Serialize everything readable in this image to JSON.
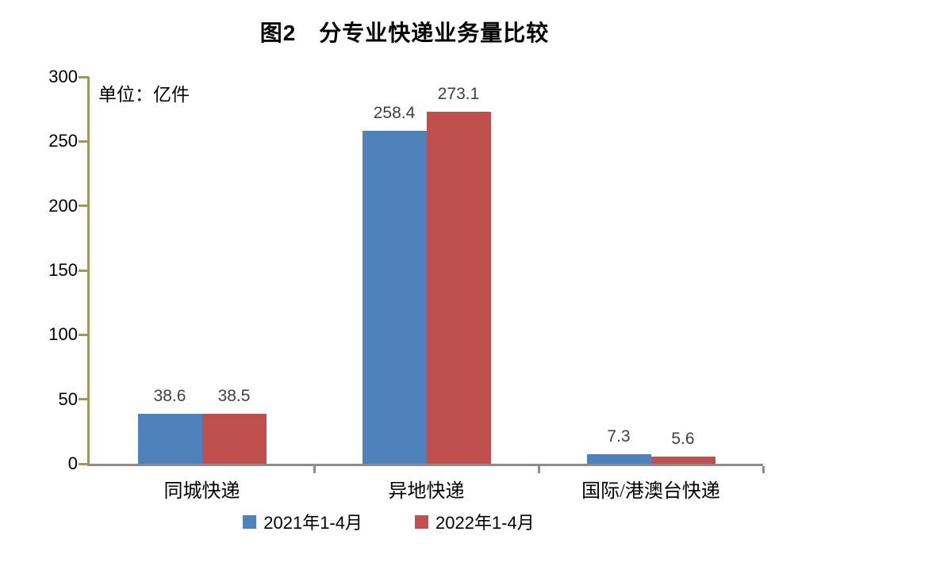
{
  "title": "图2　分专业快递业务量比较",
  "unit_label": "单位：亿件",
  "chart_data": {
    "type": "bar",
    "title": "图2　分专业快递业务量比较",
    "unit_label": "单位：亿件",
    "categories": [
      "同城快递",
      "异地快递",
      "国际/港澳台快递"
    ],
    "series": [
      {
        "name": "2021年1-4月",
        "color": "#4F81BD",
        "values": [
          38.6,
          258.4,
          7.3
        ]
      },
      {
        "name": "2022年1-4月",
        "color": "#C0504D",
        "values": [
          38.5,
          273.1,
          5.6
        ]
      }
    ],
    "xlabel": "",
    "ylabel": "单位：亿件",
    "ylim": [
      0,
      300
    ],
    "yticks": [
      0,
      50,
      100,
      150,
      200,
      250,
      300
    ],
    "grid": false,
    "legend_position": "bottom",
    "colors": {
      "y_axis": "#A09858",
      "x_axis": "#8C8C8C",
      "data_label": "#3F3F3F",
      "text": "#000000",
      "background": "#FFFFFF"
    }
  }
}
